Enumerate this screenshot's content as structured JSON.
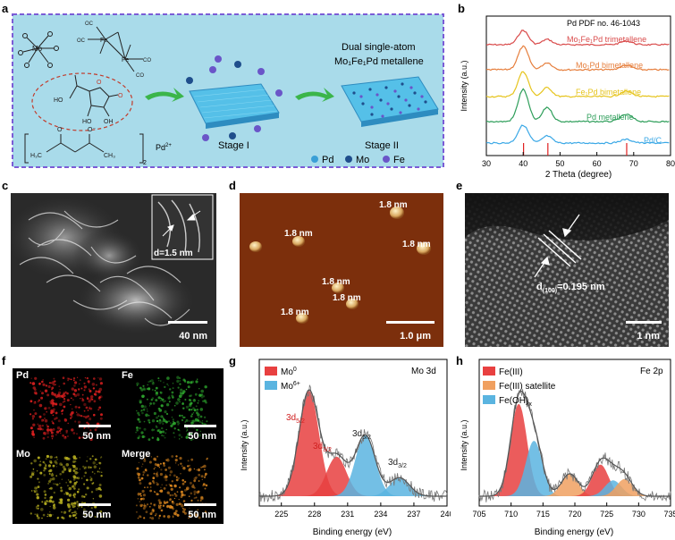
{
  "panel_letters": {
    "a": "a",
    "b": "b",
    "c": "c",
    "d": "d",
    "e": "e",
    "f": "f",
    "g": "g",
    "h": "h"
  },
  "panel_a": {
    "pd_cation": "Pd",
    "pd_cation_sup": "2+",
    "subscript_2": "2",
    "stage1": "Stage I",
    "stage2": "Stage II",
    "product_line1": "Dual single-atom",
    "product_line2": "Mo₁Fe₁Pd metallene",
    "legend": [
      {
        "label": "Pd",
        "color": "#3a9fd6"
      },
      {
        "label": "Mo",
        "color": "#1f4e8c"
      },
      {
        "label": "Fe",
        "color": "#6a55c8"
      }
    ],
    "bg_color": "#a9dbea",
    "border_color": "#7b5cd6"
  },
  "chart_b": {
    "type": "line",
    "xlabel": "2 Theta (degree)",
    "ylabel": "Intensity (a.u.)",
    "xlim": [
      30,
      80
    ],
    "xticks": [
      "30",
      "40",
      "50",
      "60",
      "70",
      "80"
    ],
    "ref_label": "Pd PDF no. 46-1043",
    "ref_lines": [
      40.1,
      46.7,
      68.1
    ],
    "series": [
      {
        "name": "Mo₁Fe₁Pd trimetallene",
        "color": "#d94a4a"
      },
      {
        "name": "Mo₁Pd bimetallene",
        "color": "#e67e3c"
      },
      {
        "name": "Fe₁Pd bimetallene",
        "color": "#e6c41c"
      },
      {
        "name": "Pd metallene",
        "color": "#2e9e5a"
      },
      {
        "name": "Pd/C",
        "color": "#3aa8e6"
      }
    ]
  },
  "panel_c": {
    "inset_label": "d=1.5 nm",
    "scale": "40 nm"
  },
  "panel_d": {
    "labels": [
      "1.8 nm",
      "1.8 nm",
      "1.8 nm",
      "1.8 nm",
      "1.8 nm",
      "1.8 nm"
    ],
    "scale": "1.0 μm"
  },
  "panel_e": {
    "label_d": "d",
    "label_sub": "(100)",
    "label_val": "=0.195 nm",
    "scale": "1 nm"
  },
  "panel_f": {
    "maps": [
      {
        "title": "Pd",
        "scale": "50 nm",
        "color": "#e02020"
      },
      {
        "title": "Fe",
        "scale": "50 nm",
        "color": "#2ea82e"
      },
      {
        "title": "Mo",
        "scale": "50 nm",
        "color": "#b8b020"
      },
      {
        "title": "Merge",
        "scale": "50 nm",
        "color": "#e08a20"
      }
    ]
  },
  "chart_g": {
    "type": "line",
    "title": "Mo 3d",
    "xlabel": "Binding energy (eV)",
    "ylabel": "Intensity (a.u.)",
    "xlim": [
      223,
      240
    ],
    "xticks": [
      "225",
      "228",
      "231",
      "234",
      "237",
      "240"
    ],
    "legend": [
      {
        "label": "Mo",
        "sup": "0",
        "color": "#e84040"
      },
      {
        "label": "Mo",
        "sup": "6+",
        "color": "#5ab4e0"
      }
    ],
    "peak_labels": [
      {
        "main": "3d",
        "sub": "5/2",
        "color": "#d02020"
      },
      {
        "main": "3d",
        "sub": "3/2",
        "color": "#d02020"
      },
      {
        "main": "3d",
        "sub": "5/2",
        "color": "#222222"
      },
      {
        "main": "3d",
        "sub": "3/2",
        "color": "#222222"
      }
    ],
    "peaks": [
      {
        "center": 227.5,
        "height": 0.8,
        "color": "#e84040"
      },
      {
        "center": 230.0,
        "height": 0.3,
        "color": "#e84040"
      },
      {
        "center": 232.6,
        "height": 0.46,
        "color": "#5ab4e0"
      },
      {
        "center": 235.7,
        "height": 0.14,
        "color": "#5ab4e0"
      }
    ]
  },
  "chart_h": {
    "type": "line",
    "title": "Fe 2p",
    "xlabel": "Binding energy (eV)",
    "ylabel": "Intensity (a.u.)",
    "xlim": [
      705,
      735
    ],
    "xticks": [
      "705",
      "710",
      "715",
      "720",
      "725",
      "730",
      "735"
    ],
    "legend": [
      {
        "label": "Fe(III)",
        "color": "#e84040"
      },
      {
        "label": "Fe(III) satellite",
        "color": "#f0a060"
      },
      {
        "label": "Fe(OH)",
        "sub": "x",
        "color": "#5ab4e0"
      }
    ],
    "peaks": [
      {
        "center": 711.2,
        "height": 0.7,
        "color": "#e84040"
      },
      {
        "center": 713.6,
        "height": 0.42,
        "color": "#5ab4e0"
      },
      {
        "center": 719.2,
        "height": 0.17,
        "color": "#f0a060"
      },
      {
        "center": 724.0,
        "height": 0.24,
        "color": "#e84040"
      },
      {
        "center": 726.0,
        "height": 0.12,
        "color": "#5ab4e0"
      },
      {
        "center": 727.8,
        "height": 0.13,
        "color": "#f0a060"
      }
    ]
  }
}
